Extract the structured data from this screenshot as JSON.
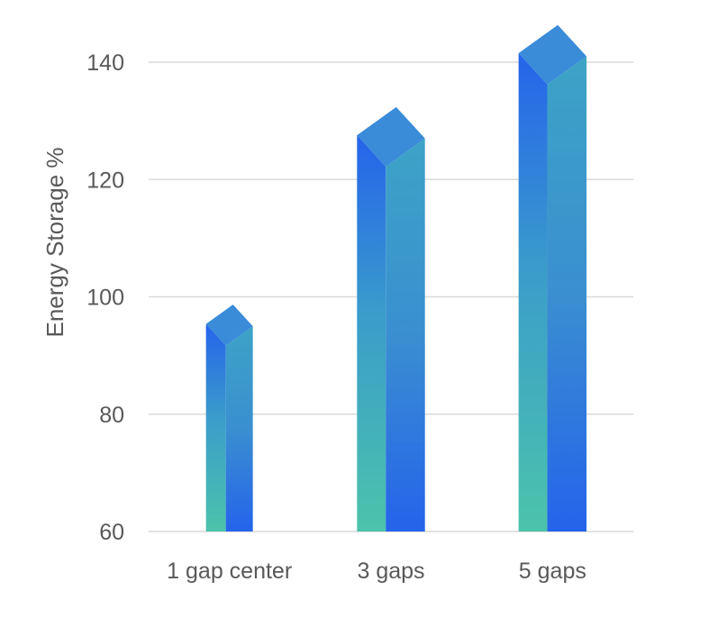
{
  "chart_data": {
    "type": "bar",
    "title": "",
    "xlabel": "",
    "ylabel": "Energy Storage %",
    "categories": [
      "1 gap center",
      "3 gaps",
      "5 gaps"
    ],
    "values": [
      95,
      127,
      141
    ],
    "ylim": [
      60,
      140
    ],
    "yticks": [
      60,
      80,
      100,
      120,
      140
    ],
    "grid": true,
    "legend": "none",
    "style": "3d-column",
    "colors": {
      "blue": "#2563EB",
      "teal": "#4CC3AB",
      "top": "#3A8BD8",
      "grid": "#D9D9D9",
      "text": "#595959"
    }
  }
}
